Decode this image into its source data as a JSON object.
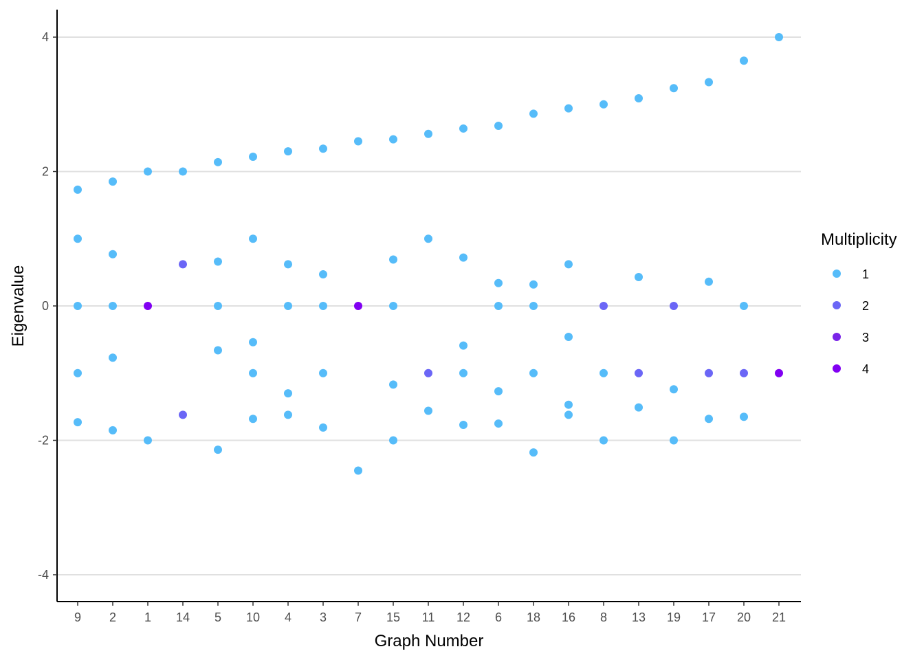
{
  "chart_data": {
    "type": "scatter",
    "xlabel": "Graph Number",
    "ylabel": "Eigenvalue",
    "categories": [
      "9",
      "2",
      "1",
      "14",
      "5",
      "10",
      "4",
      "3",
      "7",
      "15",
      "11",
      "12",
      "6",
      "18",
      "16",
      "8",
      "13",
      "19",
      "17",
      "20",
      "21"
    ],
    "ylim": [
      -4.4,
      4.4
    ],
    "yticks": [
      -4,
      -2,
      0,
      2,
      4
    ],
    "ytick_labels": [
      "-4",
      "-2",
      "0",
      "2",
      "4"
    ],
    "grid": "horizontal-major",
    "legend": {
      "title": "Multiplicity",
      "placement": "right",
      "items": [
        {
          "label": "1",
          "color": "#56BCF9"
        },
        {
          "label": "2",
          "color": "#6B66F6"
        },
        {
          "label": "3",
          "color": "#7A24E8"
        },
        {
          "label": "4",
          "color": "#8100F2"
        }
      ]
    },
    "points": [
      {
        "x": "9",
        "y": 1.73,
        "m": 1
      },
      {
        "x": "9",
        "y": 1.0,
        "m": 1
      },
      {
        "x": "9",
        "y": 0,
        "m": 1
      },
      {
        "x": "9",
        "y": -1.0,
        "m": 1
      },
      {
        "x": "9",
        "y": -1.73,
        "m": 1
      },
      {
        "x": "2",
        "y": 1.85,
        "m": 1
      },
      {
        "x": "2",
        "y": 0.77,
        "m": 1
      },
      {
        "x": "2",
        "y": 0,
        "m": 1
      },
      {
        "x": "2",
        "y": -0.77,
        "m": 1
      },
      {
        "x": "2",
        "y": -1.85,
        "m": 1
      },
      {
        "x": "1",
        "y": 2.0,
        "m": 1
      },
      {
        "x": "1",
        "y": 0,
        "m": 4
      },
      {
        "x": "1",
        "y": -2.0,
        "m": 1
      },
      {
        "x": "14",
        "y": 2.0,
        "m": 1
      },
      {
        "x": "14",
        "y": 0.62,
        "m": 2
      },
      {
        "x": "14",
        "y": -1.62,
        "m": 2
      },
      {
        "x": "5",
        "y": 2.14,
        "m": 1
      },
      {
        "x": "5",
        "y": 0.66,
        "m": 1
      },
      {
        "x": "5",
        "y": 0,
        "m": 1
      },
      {
        "x": "5",
        "y": -0.66,
        "m": 1
      },
      {
        "x": "5",
        "y": -2.14,
        "m": 1
      },
      {
        "x": "10",
        "y": 2.22,
        "m": 1
      },
      {
        "x": "10",
        "y": 1.0,
        "m": 1
      },
      {
        "x": "10",
        "y": -0.54,
        "m": 1
      },
      {
        "x": "10",
        "y": -1.0,
        "m": 1
      },
      {
        "x": "10",
        "y": -1.68,
        "m": 1
      },
      {
        "x": "4",
        "y": 2.3,
        "m": 1
      },
      {
        "x": "4",
        "y": 0.62,
        "m": 1
      },
      {
        "x": "4",
        "y": 0,
        "m": 1
      },
      {
        "x": "4",
        "y": -1.3,
        "m": 1
      },
      {
        "x": "4",
        "y": -1.62,
        "m": 1
      },
      {
        "x": "3",
        "y": 2.34,
        "m": 1
      },
      {
        "x": "3",
        "y": 0.47,
        "m": 1
      },
      {
        "x": "3",
        "y": 0,
        "m": 1
      },
      {
        "x": "3",
        "y": -1.0,
        "m": 1
      },
      {
        "x": "3",
        "y": -1.81,
        "m": 1
      },
      {
        "x": "7",
        "y": 2.45,
        "m": 1
      },
      {
        "x": "7",
        "y": 0,
        "m": 4
      },
      {
        "x": "7",
        "y": -2.45,
        "m": 1
      },
      {
        "x": "15",
        "y": 2.48,
        "m": 1
      },
      {
        "x": "15",
        "y": 0.69,
        "m": 1
      },
      {
        "x": "15",
        "y": 0,
        "m": 1
      },
      {
        "x": "15",
        "y": -1.17,
        "m": 1
      },
      {
        "x": "15",
        "y": -2.0,
        "m": 1
      },
      {
        "x": "11",
        "y": 2.56,
        "m": 1
      },
      {
        "x": "11",
        "y": 1.0,
        "m": 1
      },
      {
        "x": "11",
        "y": -1.0,
        "m": 2
      },
      {
        "x": "11",
        "y": -1.56,
        "m": 1
      },
      {
        "x": "12",
        "y": 2.64,
        "m": 1
      },
      {
        "x": "12",
        "y": 0.72,
        "m": 1
      },
      {
        "x": "12",
        "y": -0.59,
        "m": 1
      },
      {
        "x": "12",
        "y": -1.0,
        "m": 1
      },
      {
        "x": "12",
        "y": -1.77,
        "m": 1
      },
      {
        "x": "6",
        "y": 2.68,
        "m": 1
      },
      {
        "x": "6",
        "y": 0.34,
        "m": 1
      },
      {
        "x": "6",
        "y": 0,
        "m": 1
      },
      {
        "x": "6",
        "y": -1.27,
        "m": 1
      },
      {
        "x": "6",
        "y": -1.75,
        "m": 1
      },
      {
        "x": "18",
        "y": 2.86,
        "m": 1
      },
      {
        "x": "18",
        "y": 0.32,
        "m": 1
      },
      {
        "x": "18",
        "y": 0,
        "m": 1
      },
      {
        "x": "18",
        "y": -1.0,
        "m": 1
      },
      {
        "x": "18",
        "y": -2.18,
        "m": 1
      },
      {
        "x": "16",
        "y": 2.94,
        "m": 1
      },
      {
        "x": "16",
        "y": 0.62,
        "m": 1
      },
      {
        "x": "16",
        "y": -0.46,
        "m": 1
      },
      {
        "x": "16",
        "y": -1.47,
        "m": 1
      },
      {
        "x": "16",
        "y": -1.62,
        "m": 1
      },
      {
        "x": "8",
        "y": 3.0,
        "m": 1
      },
      {
        "x": "8",
        "y": 0,
        "m": 2
      },
      {
        "x": "8",
        "y": -1.0,
        "m": 1
      },
      {
        "x": "8",
        "y": -2.0,
        "m": 1
      },
      {
        "x": "13",
        "y": 3.09,
        "m": 1
      },
      {
        "x": "13",
        "y": 0.43,
        "m": 1
      },
      {
        "x": "13",
        "y": -1.0,
        "m": 2
      },
      {
        "x": "13",
        "y": -1.51,
        "m": 1
      },
      {
        "x": "19",
        "y": 3.24,
        "m": 1
      },
      {
        "x": "19",
        "y": 0,
        "m": 2
      },
      {
        "x": "19",
        "y": -1.24,
        "m": 1
      },
      {
        "x": "19",
        "y": -2.0,
        "m": 1
      },
      {
        "x": "17",
        "y": 3.33,
        "m": 1
      },
      {
        "x": "17",
        "y": 0.36,
        "m": 1
      },
      {
        "x": "17",
        "y": -1.0,
        "m": 2
      },
      {
        "x": "17",
        "y": -1.68,
        "m": 1
      },
      {
        "x": "20",
        "y": 3.65,
        "m": 1
      },
      {
        "x": "20",
        "y": 0,
        "m": 1
      },
      {
        "x": "20",
        "y": -1.0,
        "m": 2
      },
      {
        "x": "20",
        "y": -1.65,
        "m": 1
      },
      {
        "x": "21",
        "y": 4.0,
        "m": 1
      },
      {
        "x": "21",
        "y": -1.0,
        "m": 4
      }
    ]
  }
}
